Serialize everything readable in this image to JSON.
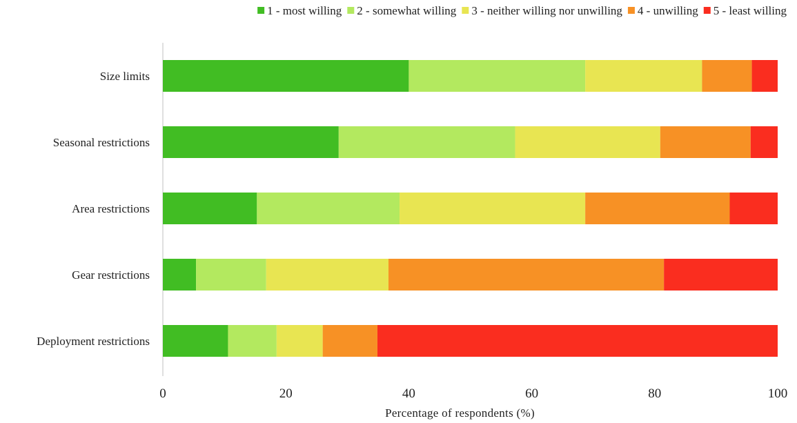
{
  "chart_data": {
    "type": "bar",
    "orientation": "horizontal",
    "stacked": true,
    "categories": [
      "Size limits",
      "Seasonal restrictions",
      "Area restrictions",
      "Gear restrictions",
      "Deployment restrictions"
    ],
    "series": [
      {
        "name": "1 - most willing",
        "color": "#41bd23",
        "values": [
          40.0,
          28.6,
          15.3,
          5.4,
          10.6
        ]
      },
      {
        "name": "2 - somewhat willing",
        "color": "#b3e95f",
        "values": [
          28.7,
          28.7,
          23.2,
          11.4,
          7.9
        ]
      },
      {
        "name": "3 - neither willing nor unwilling",
        "color": "#e8e552",
        "values": [
          19.0,
          23.6,
          30.2,
          19.9,
          7.5
        ]
      },
      {
        "name": "4 - unwilling",
        "color": "#f79125",
        "values": [
          8.1,
          14.7,
          23.5,
          44.8,
          8.9
        ]
      },
      {
        "name": "5 - least willing",
        "color": "#fa2d1f",
        "values": [
          4.2,
          4.4,
          7.8,
          18.5,
          65.1
        ]
      }
    ],
    "xlabel": "Percentage of respondents (%)",
    "ylabel": "",
    "xlim": [
      0,
      100
    ],
    "xticks": [
      "0",
      "20",
      "40",
      "60",
      "80",
      "100"
    ],
    "grid": false,
    "legend_position": "top"
  }
}
